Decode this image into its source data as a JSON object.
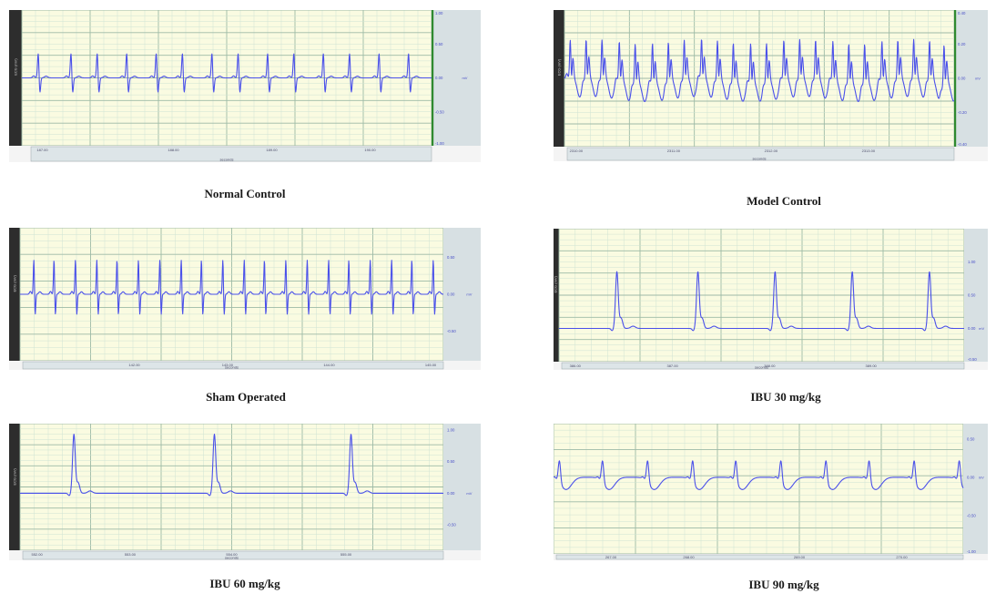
{
  "colors": {
    "plot_bg": "#fafbe1",
    "grid_minor": "#cfe3d3",
    "grid_major": "#9dbaa6",
    "trace": "#4a50ea",
    "left_strip": "#2d2d2d",
    "right_strip": "#d7e0e3",
    "axis_bar": "#dde5e8",
    "green_bar": "#2f8a2f"
  },
  "chart_data": [
    {
      "type": "line",
      "title": "Normal Control",
      "channel_label": "ECG (mV)",
      "xlabel": "seconds",
      "x_ticks": [
        "187.00",
        "188.00",
        "189.00",
        "190.00"
      ],
      "y_ticks": [
        "1.00",
        "0.50",
        "0.00",
        "-0.50",
        "-1.00"
      ],
      "ylim": [
        -1.0,
        1.0
      ],
      "green_bar": true,
      "series": [
        {
          "waveform": "biphasic",
          "amplitude_mv": 0.37,
          "baseline_mv": 0.0,
          "beat_times_s": [
            0.5,
            1.5,
            2.3,
            3.2,
            4.1,
            4.9,
            5.8,
            6.6,
            7.5,
            8.3,
            9.2,
            10.0,
            10.9,
            11.8
          ],
          "window_s": 12.5
        }
      ]
    },
    {
      "type": "line",
      "title": "Model Control",
      "channel_label": "ECG (mV)",
      "xlabel": "seconds",
      "x_ticks": [
        "2310.00",
        "2311.00",
        "2312.00",
        "2313.00"
      ],
      "y_ticks": [
        "0.40",
        "0.20",
        "0.00",
        "-0.20",
        "-0.40"
      ],
      "ylim": [
        -0.4,
        0.4
      ],
      "green_bar": true,
      "series": [
        {
          "waveform": "st_changes",
          "amplitude_mv": 0.22,
          "baseline_mv": 0.0,
          "beat_times_s": [
            0.2,
            0.75,
            1.3,
            1.9,
            2.45,
            3.05,
            3.6,
            4.15,
            4.75,
            5.3,
            5.85,
            6.45,
            7.0,
            7.6,
            8.15,
            8.7,
            9.3,
            9.85,
            10.4,
            11.0,
            11.55,
            12.1,
            12.65,
            13.15
          ],
          "window_s": 13.5
        }
      ]
    },
    {
      "type": "line",
      "title": "Sham Operated",
      "channel_label": "ECG (mV)",
      "xlabel": "seconds",
      "x_ticks": [
        "142.00",
        "143.00",
        "144.00",
        "145.00"
      ],
      "y_ticks": [
        "0.50",
        "0.00",
        "-0.50"
      ],
      "ylim": [
        -0.9,
        0.9
      ],
      "green_bar": false,
      "series": [
        {
          "waveform": "biphasic",
          "amplitude_mv": 0.48,
          "baseline_mv": 0.0,
          "beat_times_s": [
            0.55,
            1.35,
            2.2,
            3.05,
            3.85,
            4.7,
            5.55,
            6.4,
            7.2,
            8.05,
            8.9,
            9.7,
            10.55,
            11.4,
            12.25,
            13.05,
            13.9,
            14.75,
            15.55,
            16.4
          ],
          "window_s": 16.8
        }
      ]
    },
    {
      "type": "line",
      "title": "IBU 30 mg/kg",
      "channel_label": "ECG (mV)",
      "xlabel": "seconds",
      "x_ticks": [
        "386.00",
        "387.00",
        "388.00",
        "389.00"
      ],
      "y_ticks": [
        "1.00",
        "0.50",
        "0.00",
        "-0.50"
      ],
      "ylim": [
        -0.5,
        1.5
      ],
      "green_bar": false,
      "series": [
        {
          "waveform": "spike",
          "amplitude_mv": 0.85,
          "baseline_mv": 0.0,
          "beat_times_s": [
            1.5,
            3.6,
            5.6,
            7.6,
            9.6
          ],
          "window_s": 10.5
        }
      ]
    },
    {
      "type": "line",
      "title": "IBU 60 mg/kg",
      "channel_label": "ECG (mV)",
      "xlabel": "seconds",
      "x_ticks": [
        "552.00",
        "553.00",
        "554.00",
        "555.00"
      ],
      "y_ticks": [
        "1.00",
        "0.50",
        "0.00",
        "-0.50"
      ],
      "ylim": [
        -0.9,
        1.1
      ],
      "green_bar": false,
      "series": [
        {
          "waveform": "spike",
          "amplitude_mv": 0.93,
          "baseline_mv": 0.0,
          "beat_times_s": [
            1.4,
            5.05,
            8.6
          ],
          "window_s": 11.0
        }
      ]
    },
    {
      "type": "line",
      "title": "IBU 90 mg/kg",
      "channel_label": "ECG (mV)",
      "xlabel": "seconds",
      "x_ticks": [
        "267.00",
        "268.00",
        "269.00",
        "270.00"
      ],
      "y_ticks": [
        "0.50",
        "0.00",
        "-0.50",
        "-1.00"
      ],
      "ylim": [
        -1.0,
        0.7
      ],
      "green_bar": false,
      "series": [
        {
          "waveform": "small",
          "amplitude_mv": 0.29,
          "baseline_mv": 0.0,
          "beat_times_s": [
            0.15,
            1.25,
            2.4,
            3.55,
            4.65,
            5.8,
            6.95,
            8.05,
            9.2,
            10.35
          ],
          "window_s": 10.45
        }
      ]
    }
  ]
}
